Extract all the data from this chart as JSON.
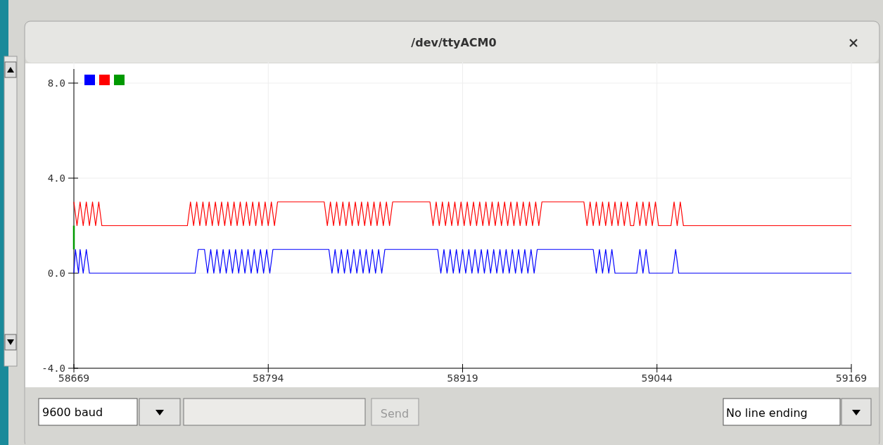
{
  "chart_data": {
    "type": "line",
    "title": "/dev/ttyACM0",
    "xlim": [
      58669,
      59169
    ],
    "xticks": [
      58669,
      58794,
      58919,
      59044,
      59169
    ],
    "ylim": [
      -4,
      8
    ],
    "yticks": [
      {
        "value": -4,
        "label": "-4.0"
      },
      {
        "value": 0,
        "label": "0.0"
      },
      {
        "value": 4,
        "label": "4.0"
      },
      {
        "value": 8,
        "label": "8.0"
      }
    ],
    "grid": true,
    "marker": "none",
    "line_style": "solid",
    "annotations": [
      "9600 baud",
      "Send",
      "No line ending"
    ],
    "series": [
      {
        "color": "#0000ff",
        "x": [
          58669,
          58670,
          58672,
          58673,
          58675,
          58677,
          58679,
          58747,
          58749,
          58753,
          58755,
          58757,
          58759,
          58761,
          58763,
          58765,
          58767,
          58769,
          58771,
          58773,
          58775,
          58777,
          58779,
          58781,
          58783,
          58785,
          58787,
          58789,
          58791,
          58793,
          58795,
          58797,
          58833,
          58835,
          58837,
          58839,
          58841,
          58843,
          58845,
          58847,
          58849,
          58851,
          58853,
          58855,
          58857,
          58859,
          58861,
          58863,
          58865,
          58867,
          58869,
          58903,
          58905,
          58907,
          58909,
          58911,
          58913,
          58915,
          58917,
          58919,
          58921,
          58923,
          58925,
          58927,
          58929,
          58931,
          58933,
          58935,
          58937,
          58939,
          58941,
          58943,
          58945,
          58947,
          58949,
          58951,
          58953,
          58955,
          58957,
          58959,
          58961,
          58963,
          58965,
          58967,
          59003,
          59005,
          59007,
          59009,
          59011,
          59013,
          59015,
          59017,
          59031,
          59033,
          59035,
          59037,
          59039,
          59054,
          59056,
          59058,
          59169
        ],
        "values": [
          0,
          1,
          0,
          1,
          0,
          1,
          0,
          0,
          1,
          1,
          0,
          1,
          0,
          1,
          0,
          1,
          0,
          1,
          0,
          1,
          0,
          1,
          0,
          1,
          0,
          1,
          0,
          1,
          0,
          1,
          0,
          1,
          1,
          0,
          1,
          0,
          1,
          0,
          1,
          0,
          1,
          0,
          1,
          0,
          1,
          0,
          1,
          0,
          1,
          0,
          1,
          1,
          0,
          1,
          0,
          1,
          0,
          1,
          0,
          1,
          0,
          1,
          0,
          1,
          0,
          1,
          0,
          1,
          0,
          1,
          0,
          1,
          0,
          1,
          0,
          1,
          0,
          1,
          0,
          1,
          0,
          1,
          0,
          1,
          1,
          0,
          1,
          0,
          1,
          0,
          1,
          0,
          0,
          1,
          0,
          1,
          0,
          0,
          1,
          0,
          0
        ]
      },
      {
        "color": "#ff0000",
        "x": [
          58669,
          58671,
          58673,
          58675,
          58677,
          58679,
          58681,
          58683,
          58685,
          58687,
          58742,
          58744,
          58746,
          58748,
          58750,
          58752,
          58754,
          58756,
          58758,
          58760,
          58762,
          58764,
          58766,
          58768,
          58770,
          58772,
          58774,
          58776,
          58778,
          58780,
          58782,
          58784,
          58786,
          58788,
          58790,
          58792,
          58794,
          58796,
          58798,
          58800,
          58830,
          58832,
          58834,
          58836,
          58838,
          58840,
          58842,
          58844,
          58846,
          58848,
          58850,
          58852,
          58854,
          58856,
          58858,
          58860,
          58862,
          58864,
          58866,
          58868,
          58870,
          58872,
          58874,
          58898,
          58900,
          58902,
          58904,
          58906,
          58908,
          58910,
          58912,
          58914,
          58916,
          58918,
          58920,
          58922,
          58924,
          58926,
          58928,
          58930,
          58932,
          58934,
          58936,
          58938,
          58940,
          58942,
          58944,
          58946,
          58948,
          58950,
          58952,
          58954,
          58956,
          58958,
          58960,
          58962,
          58964,
          58966,
          58968,
          58970,
          58997,
          58999,
          59001,
          59003,
          59005,
          59007,
          59009,
          59011,
          59013,
          59015,
          59017,
          59019,
          59021,
          59023,
          59025,
          59027,
          59029,
          59031,
          59033,
          59035,
          59037,
          59039,
          59041,
          59043,
          59045,
          59053,
          59055,
          59057,
          59059,
          59061,
          59169
        ],
        "values": [
          3,
          2,
          3,
          2,
          3,
          2,
          3,
          2,
          3,
          2,
          2,
          3,
          2,
          3,
          2,
          3,
          2,
          3,
          2,
          3,
          2,
          3,
          2,
          3,
          2,
          3,
          2,
          3,
          2,
          3,
          2,
          3,
          2,
          3,
          2,
          3,
          2,
          3,
          2,
          3,
          3,
          2,
          3,
          2,
          3,
          2,
          3,
          2,
          3,
          2,
          3,
          2,
          3,
          2,
          3,
          2,
          3,
          2,
          3,
          2,
          3,
          2,
          3,
          3,
          2,
          3,
          2,
          3,
          2,
          3,
          2,
          3,
          2,
          3,
          2,
          3,
          2,
          3,
          2,
          3,
          2,
          3,
          2,
          3,
          2,
          3,
          2,
          3,
          2,
          3,
          2,
          3,
          2,
          3,
          2,
          3,
          2,
          3,
          2,
          3,
          3,
          2,
          3,
          2,
          3,
          2,
          3,
          2,
          3,
          2,
          3,
          2,
          3,
          2,
          3,
          2,
          2,
          3,
          2,
          3,
          2,
          3,
          2,
          3,
          2,
          2,
          3,
          2,
          3,
          2,
          2
        ]
      },
      {
        "color": "#009900",
        "x": [
          58669,
          58669
        ],
        "values": [
          1,
          2
        ]
      }
    ]
  }
}
